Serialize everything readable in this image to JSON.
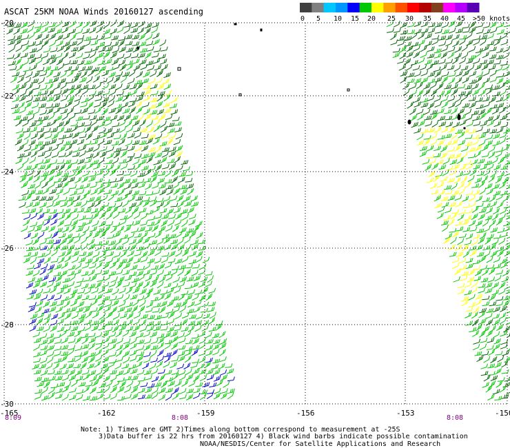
{
  "title": "ASCAT 25KM NOAA Winds 20160127 ascending",
  "legend": {
    "labels": [
      "0",
      "5",
      "10",
      "15",
      "20",
      "25",
      "30",
      "35",
      "40",
      "45",
      ">50 knots"
    ],
    "colors": [
      "#404040",
      "#808080",
      "#00c8ff",
      "#0096ff",
      "#0000ff",
      "#00c800",
      "#ffff00",
      "#ffa000",
      "#ff5000",
      "#ff0000",
      "#b40000",
      "#804020",
      "#ff00ff",
      "#b400ff",
      "#5a00b4"
    ]
  },
  "lat_labels": [
    "-20",
    "-22",
    "-24",
    "-26",
    "-28",
    "-30"
  ],
  "lon_labels": [
    "-165",
    "-162",
    "-159",
    "-156",
    "-153",
    "-150"
  ],
  "time_labels": [
    "8:09",
    "8:08",
    "8:08"
  ],
  "notes": [
    "Note: 1) Times are GMT 2)Times along bottom correspond to measurement at -25S",
    "3)Data buffer is 22 hrs from 20160127 4) Black wind barbs indicate possible contamination",
    "NOAA/NESDIS/Center for Satellite Applications and Research"
  ],
  "colors": {
    "barb_darkgreen": "#006400",
    "barb_green": "#00c800",
    "barb_blue": "#0000d0",
    "barb_yellow": "#ffff00",
    "time_label": "#800080",
    "grid": "#000000"
  }
}
